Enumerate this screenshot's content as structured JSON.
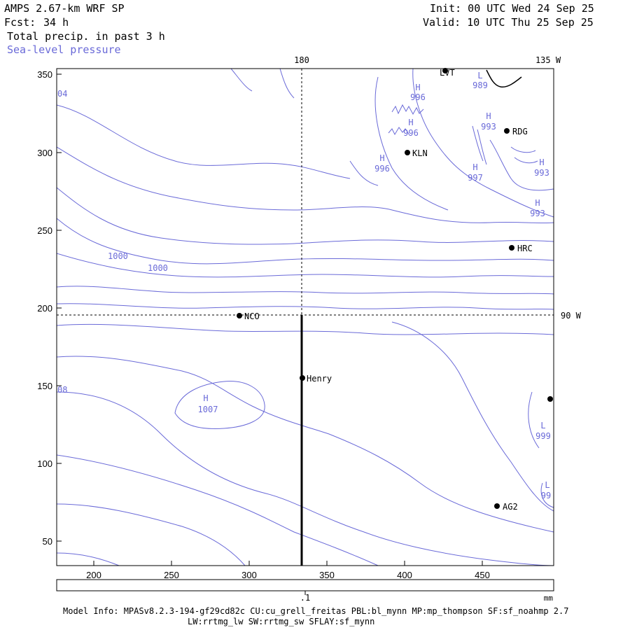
{
  "header": {
    "model": "AMPS 2.67-km WRF SP",
    "fcst_label": "Fcst:",
    "fcst_value": "34 h",
    "field1": "Total precip. in past 3 h",
    "field2": "Sea-level pressure",
    "init": "Init: 00 UTC Wed 24 Sep 25",
    "valid": "Valid: 10 UTC Thu 25 Sep 25"
  },
  "axes": {
    "x_ticks": [
      "200",
      "250",
      "300",
      "350",
      "400",
      "450"
    ],
    "y_ticks": [
      "350",
      "300",
      "250",
      "200",
      "150",
      "100",
      "50"
    ],
    "meridian_180": "180",
    "meridian_135w": "135 W",
    "meridian_90w": "90 W"
  },
  "stations": [
    {
      "name": "LVT",
      "label": "LVT"
    },
    {
      "name": "RDG",
      "label": "RDG"
    },
    {
      "name": "KLN",
      "label": "KLN"
    },
    {
      "name": "HRC",
      "label": "HRC"
    },
    {
      "name": "NCO",
      "label": "NCO"
    },
    {
      "name": "Henry",
      "label": "Henry"
    },
    {
      "name": "AG2",
      "label": "AG2"
    }
  ],
  "pressure_labels": [
    {
      "type": "H",
      "value": "996"
    },
    {
      "type": "H",
      "value": "996"
    },
    {
      "type": "H",
      "value": "996"
    },
    {
      "type": "H",
      "value": "993"
    },
    {
      "type": "H",
      "value": "997"
    },
    {
      "type": "H",
      "value": "993"
    },
    {
      "type": "H",
      "value": "993"
    },
    {
      "type": "L",
      "value": "989"
    },
    {
      "type": "H",
      "value": "1007"
    },
    {
      "type": "L",
      "value": "999"
    },
    {
      "type": "L",
      "value": "99"
    }
  ],
  "contour_labels": [
    "1000",
    "1000",
    "04",
    "08"
  ],
  "colorbar": {
    "tick": ".1",
    "unit": "mm"
  },
  "footer": {
    "line1": "Model Info: MPASv8.2.3-194-gf29cd82c CU:cu_grell_freitas PBL:bl_mynn MP:mp_thompson SF:sf_noahmp 2.7",
    "line2": "LW:rrtmg_lw SW:rrtmg_sw SFLAY:sf_mynn"
  },
  "colors": {
    "contour": "#6a6ad8",
    "frame": "#000000",
    "background": "#ffffff"
  }
}
